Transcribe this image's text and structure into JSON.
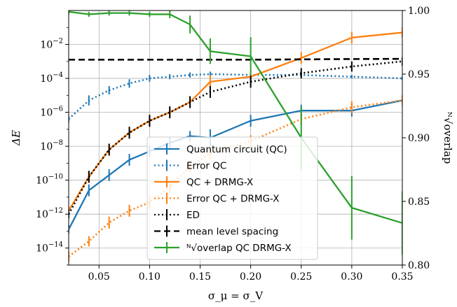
{
  "chart_data": {
    "type": "line",
    "xlabel": "σ_μ = σ_V",
    "ylabel_left": "ΔE",
    "ylabel_right": "ᴺ√overlap",
    "x_ticks": [
      "0.05",
      "0.10",
      "0.15",
      "0.20",
      "0.25",
      "0.30",
      "0.35"
    ],
    "y_left_ticks": [
      "10^-14",
      "10^-12",
      "10^-10",
      "10^-8",
      "10^-6",
      "10^-4",
      "10^-2"
    ],
    "y_right_ticks": [
      "0.80",
      "0.85",
      "0.90",
      "0.95",
      "1.00"
    ],
    "xlim": [
      0.02,
      0.35
    ],
    "ylim_left_log10": [
      -15.0,
      0.0
    ],
    "ylim_right": [
      0.8,
      1.0
    ],
    "grid": true,
    "legend_position": "lower-center",
    "series": [
      {
        "name": "Quantum circuit (QC)",
        "axis": "left",
        "color": "#1f77b4",
        "style": "solid",
        "x": [
          0.02,
          0.04,
          0.06,
          0.08,
          0.1,
          0.12,
          0.14,
          0.16,
          0.2,
          0.25,
          0.3,
          0.35
        ],
        "log10_y": [
          -12.9,
          -10.6,
          -9.7,
          -8.8,
          -8.3,
          -7.8,
          -7.4,
          -7.5,
          -6.5,
          -5.9,
          -5.9,
          -5.3
        ],
        "err_log10": [
          0.25,
          0.35,
          0.35,
          0.35,
          0.35,
          0.35,
          0.3,
          0.5,
          0.35,
          0.35,
          0.35,
          0.3
        ]
      },
      {
        "name": "Error QC",
        "axis": "left",
        "color": "#1f77b4",
        "style": "dotted",
        "x": [
          0.02,
          0.04,
          0.06,
          0.08,
          0.1,
          0.12,
          0.14,
          0.16,
          0.2,
          0.25,
          0.3,
          0.35
        ],
        "log10_y": [
          -6.4,
          -5.3,
          -4.7,
          -4.3,
          -4.0,
          -3.9,
          -3.8,
          -3.75,
          -3.8,
          -3.8,
          -3.9,
          -4.0
        ],
        "err_log10": [
          0.2,
          0.3,
          0.25,
          0.25,
          0.2,
          0.15,
          0.15,
          0.15,
          0.1,
          0.1,
          0.1,
          0.1
        ]
      },
      {
        "name": "QC + DRMG-X",
        "axis": "left",
        "color": "#ff7f0e",
        "style": "solid",
        "x": [
          0.02,
          0.04,
          0.06,
          0.08,
          0.1,
          0.12,
          0.14,
          0.16,
          0.2,
          0.25,
          0.3,
          0.35
        ],
        "log10_y": [
          -11.8,
          -9.8,
          -8.2,
          -7.2,
          -6.5,
          -6.0,
          -5.4,
          -4.2,
          -3.9,
          -2.8,
          -1.6,
          -1.3
        ],
        "err_log10": [
          0.25,
          0.35,
          0.35,
          0.35,
          0.35,
          0.35,
          0.35,
          0.4,
          0.35,
          0.35,
          0.35,
          0.3
        ]
      },
      {
        "name": "Error QC + DRMG-X",
        "axis": "left",
        "color": "#ff7f0e",
        "style": "dotted",
        "x": [
          0.02,
          0.04,
          0.06,
          0.08,
          0.1,
          0.12,
          0.14,
          0.16,
          0.2,
          0.25,
          0.3,
          0.35
        ],
        "log10_y": [
          -14.5,
          -13.6,
          -12.5,
          -11.8,
          -11.3,
          -10.4,
          -9.2,
          -8.4,
          -7.7,
          -6.4,
          -5.7,
          -5.3
        ],
        "err_log10": [
          0.3,
          0.3,
          0.35,
          0.35,
          0.35,
          0.35,
          0.35,
          0.35,
          0.35,
          0.35,
          0.35,
          0.3
        ]
      },
      {
        "name": "ED",
        "axis": "left",
        "color": "#000000",
        "style": "dotted",
        "x": [
          0.02,
          0.04,
          0.06,
          0.08,
          0.1,
          0.12,
          0.14,
          0.16,
          0.2,
          0.25,
          0.3,
          0.35
        ],
        "log10_y": [
          -12.0,
          -9.8,
          -8.2,
          -7.2,
          -6.5,
          -6.0,
          -5.4,
          -4.8,
          -4.2,
          -3.7,
          -3.3,
          -3.0
        ],
        "err_log10": [
          0.25,
          0.35,
          0.35,
          0.35,
          0.35,
          0.35,
          0.35,
          0.35,
          0.35,
          0.3,
          0.3,
          0.25
        ]
      },
      {
        "name": "mean level spacing",
        "axis": "left",
        "color": "#000000",
        "style": "dashed",
        "x": [
          0.02,
          0.04,
          0.06,
          0.08,
          0.1,
          0.12,
          0.14,
          0.16,
          0.2,
          0.25,
          0.3,
          0.35
        ],
        "log10_y": [
          -2.9,
          -2.9,
          -2.9,
          -2.9,
          -2.9,
          -2.9,
          -2.9,
          -2.9,
          -2.9,
          -2.88,
          -2.86,
          -2.85
        ],
        "err_log10": []
      },
      {
        "name": "ᴺ√overlap QC DRMG-X",
        "axis": "right",
        "color": "#2ca02c",
        "style": "solid",
        "x": [
          0.02,
          0.04,
          0.06,
          0.08,
          0.1,
          0.12,
          0.14,
          0.16,
          0.2,
          0.25,
          0.3,
          0.35
        ],
        "y": [
          0.999,
          0.997,
          0.998,
          0.998,
          0.997,
          0.997,
          0.989,
          0.968,
          0.964,
          0.9,
          0.845,
          0.833
        ],
        "err": [
          0.002,
          0.002,
          0.002,
          0.002,
          0.002,
          0.003,
          0.007,
          0.01,
          0.015,
          0.025,
          0.025,
          0.025
        ]
      }
    ]
  }
}
